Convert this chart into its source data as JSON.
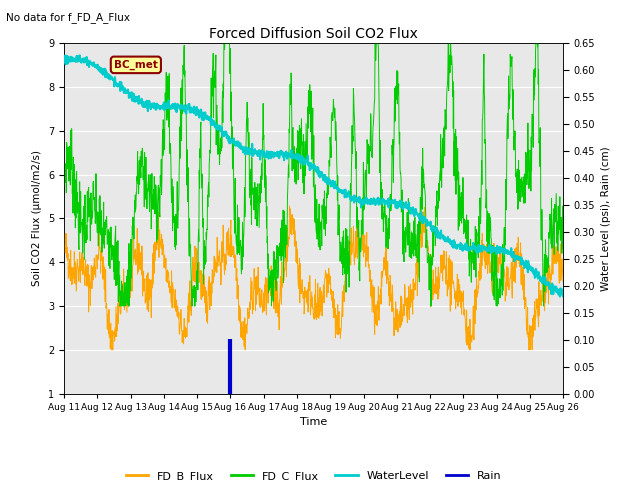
{
  "title": "Forced Diffusion Soil CO2 Flux",
  "subtitle": "No data for f_FD_A_Flux",
  "xlabel": "Time",
  "ylabel_left": "Soil CO2 Flux (μmol/m2/s)",
  "ylabel_right": "Water Level (psi), Rain (cm)",
  "ylim_left": [
    1.0,
    9.0
  ],
  "ylim_right": [
    0.0,
    0.65
  ],
  "xtick_labels": [
    "Aug 11",
    "Aug 12",
    "Aug 13",
    "Aug 14",
    "Aug 15",
    "Aug 16",
    "Aug 17",
    "Aug 18",
    "Aug 19",
    "Aug 20",
    "Aug 21",
    "Aug 22",
    "Aug 23",
    "Aug 24",
    "Aug 25",
    "Aug 26"
  ],
  "bc_met_label": "BC_met",
  "bc_met_color": "#8b0000",
  "bc_met_bg": "#ffff99",
  "bg_color": "#e8e8e8",
  "fd_b_color": "#ffa500",
  "fd_c_color": "#00cc00",
  "water_color": "#00cccc",
  "rain_color": "#0000cc",
  "legend_entries": [
    "FD_B_Flux",
    "FD_C_Flux",
    "WaterLevel",
    "Rain"
  ]
}
